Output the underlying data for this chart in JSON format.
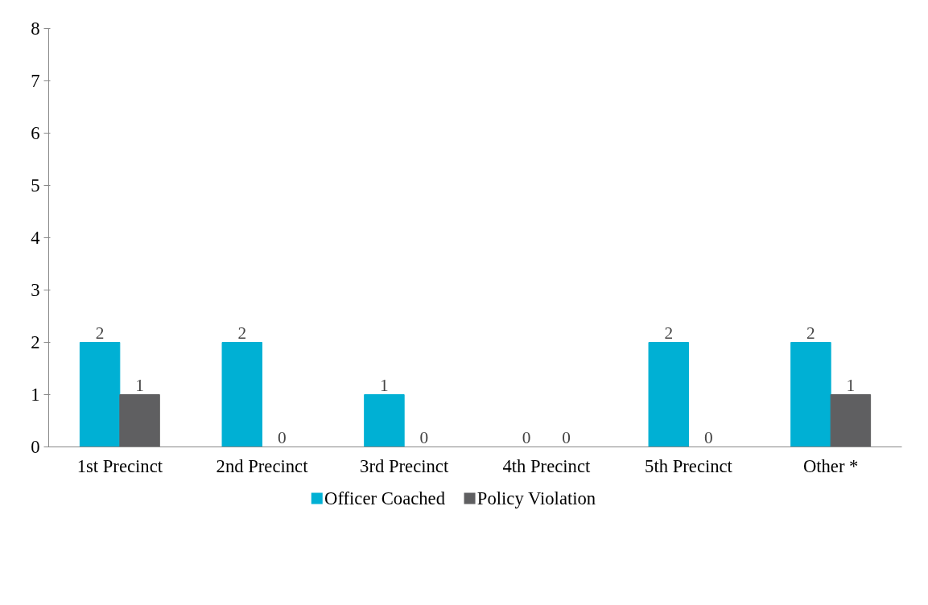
{
  "chart_data": {
    "type": "bar",
    "categories": [
      "1st Precinct",
      "2nd Precinct",
      "3rd Precinct",
      "4th Precinct",
      "5th Precinct",
      "Other *"
    ],
    "series": [
      {
        "name": "Officer Coached",
        "color": "#00b0d4",
        "values": [
          2,
          2,
          1,
          0,
          2,
          2
        ]
      },
      {
        "name": "Policy Violation",
        "color": "#5f5f61",
        "values": [
          1,
          0,
          0,
          0,
          0,
          1
        ]
      }
    ],
    "ylim": [
      0,
      8
    ],
    "yticks": [
      0,
      1,
      2,
      3,
      4,
      5,
      6,
      7,
      8
    ],
    "grid": false,
    "legend": "bottom",
    "data_labels": true
  }
}
